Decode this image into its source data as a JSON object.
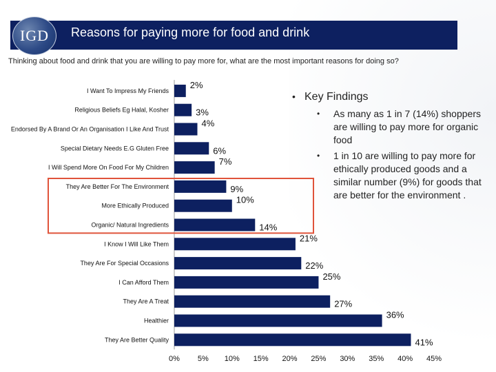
{
  "header": {
    "logo_text": "IGD",
    "title": "Reasons for paying more for food and drink",
    "subtitle": "Thinking about food and drink that you are willing to pay more for, what are the most important reasons for doing so?"
  },
  "colors": {
    "header_bg": "#0d2060",
    "bar": "#0d2060",
    "highlight_box": "#e0533a"
  },
  "findings": {
    "heading": "Key Findings",
    "bullet_glyph": "•",
    "items": [
      "As many as 1 in 7 (14%) shoppers are willing to pay more for organic food",
      "1 in 10 are willing to pay more for ethically produced goods and a similar number (9%) for goods that are better for the environment ."
    ]
  },
  "chart_data": {
    "type": "bar",
    "orientation": "horizontal",
    "categories": [
      "I Want To Impress My Friends",
      "Religious Beliefs Eg Halal, Kosher",
      "Endorsed By A Brand Or An Organisation I Like And Trust",
      "Special Dietary Needs E.G Gluten Free",
      "I Will Spend More On Food For My Children",
      "They Are Better For The Environment",
      "More Ethically Produced",
      "Organic/ Natural Ingredients",
      "I Know I Will Like Them",
      "They Are For Special Occasions",
      "I Can Afford Them",
      "They Are A Treat",
      "Healthier",
      "They Are Better Quality"
    ],
    "values": [
      2,
      3,
      4,
      6,
      7,
      9,
      10,
      14,
      21,
      22,
      25,
      27,
      36,
      41
    ],
    "value_labels": [
      "2%",
      "3%",
      "4%",
      "6%",
      "7%",
      "9%",
      "10%",
      "14%",
      "21%",
      "22%",
      "25%",
      "27%",
      "36%",
      "41%"
    ],
    "highlighted_categories": [
      "They Are Better For The Environment",
      "More Ethically Produced",
      "Organic/ Natural Ingredients"
    ],
    "xlim": [
      0,
      45
    ],
    "xticks": [
      "0%",
      "5%",
      "10%",
      "15%",
      "20%",
      "25%",
      "30%",
      "35%",
      "40%",
      "45%"
    ],
    "grid": false,
    "legend": "none"
  }
}
